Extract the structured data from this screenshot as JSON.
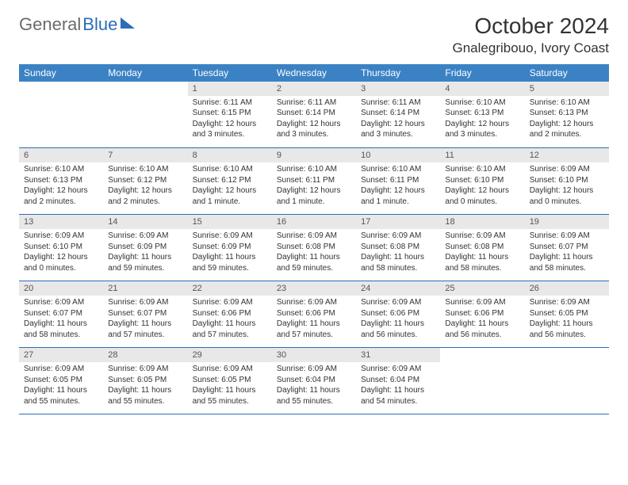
{
  "logo": {
    "general": "General",
    "blue": "Blue"
  },
  "title": "October 2024",
  "location": "Gnalegribouo, Ivory Coast",
  "colors": {
    "header_bg": "#3b82c4",
    "header_text": "#ffffff",
    "daynum_bg": "#e8e8e8",
    "daynum_text": "#555555",
    "cell_border": "#2a6db8",
    "body_text": "#333333",
    "logo_gray": "#6b6b6b",
    "logo_blue": "#2a6db8"
  },
  "weekdays": [
    "Sunday",
    "Monday",
    "Tuesday",
    "Wednesday",
    "Thursday",
    "Friday",
    "Saturday"
  ],
  "weeks": [
    [
      {
        "empty": true
      },
      {
        "empty": true
      },
      {
        "day": "1",
        "sunrise": "Sunrise: 6:11 AM",
        "sunset": "Sunset: 6:15 PM",
        "daylight": "Daylight: 12 hours and 3 minutes."
      },
      {
        "day": "2",
        "sunrise": "Sunrise: 6:11 AM",
        "sunset": "Sunset: 6:14 PM",
        "daylight": "Daylight: 12 hours and 3 minutes."
      },
      {
        "day": "3",
        "sunrise": "Sunrise: 6:11 AM",
        "sunset": "Sunset: 6:14 PM",
        "daylight": "Daylight: 12 hours and 3 minutes."
      },
      {
        "day": "4",
        "sunrise": "Sunrise: 6:10 AM",
        "sunset": "Sunset: 6:13 PM",
        "daylight": "Daylight: 12 hours and 3 minutes."
      },
      {
        "day": "5",
        "sunrise": "Sunrise: 6:10 AM",
        "sunset": "Sunset: 6:13 PM",
        "daylight": "Daylight: 12 hours and 2 minutes."
      }
    ],
    [
      {
        "day": "6",
        "sunrise": "Sunrise: 6:10 AM",
        "sunset": "Sunset: 6:13 PM",
        "daylight": "Daylight: 12 hours and 2 minutes."
      },
      {
        "day": "7",
        "sunrise": "Sunrise: 6:10 AM",
        "sunset": "Sunset: 6:12 PM",
        "daylight": "Daylight: 12 hours and 2 minutes."
      },
      {
        "day": "8",
        "sunrise": "Sunrise: 6:10 AM",
        "sunset": "Sunset: 6:12 PM",
        "daylight": "Daylight: 12 hours and 1 minute."
      },
      {
        "day": "9",
        "sunrise": "Sunrise: 6:10 AM",
        "sunset": "Sunset: 6:11 PM",
        "daylight": "Daylight: 12 hours and 1 minute."
      },
      {
        "day": "10",
        "sunrise": "Sunrise: 6:10 AM",
        "sunset": "Sunset: 6:11 PM",
        "daylight": "Daylight: 12 hours and 1 minute."
      },
      {
        "day": "11",
        "sunrise": "Sunrise: 6:10 AM",
        "sunset": "Sunset: 6:10 PM",
        "daylight": "Daylight: 12 hours and 0 minutes."
      },
      {
        "day": "12",
        "sunrise": "Sunrise: 6:09 AM",
        "sunset": "Sunset: 6:10 PM",
        "daylight": "Daylight: 12 hours and 0 minutes."
      }
    ],
    [
      {
        "day": "13",
        "sunrise": "Sunrise: 6:09 AM",
        "sunset": "Sunset: 6:10 PM",
        "daylight": "Daylight: 12 hours and 0 minutes."
      },
      {
        "day": "14",
        "sunrise": "Sunrise: 6:09 AM",
        "sunset": "Sunset: 6:09 PM",
        "daylight": "Daylight: 11 hours and 59 minutes."
      },
      {
        "day": "15",
        "sunrise": "Sunrise: 6:09 AM",
        "sunset": "Sunset: 6:09 PM",
        "daylight": "Daylight: 11 hours and 59 minutes."
      },
      {
        "day": "16",
        "sunrise": "Sunrise: 6:09 AM",
        "sunset": "Sunset: 6:08 PM",
        "daylight": "Daylight: 11 hours and 59 minutes."
      },
      {
        "day": "17",
        "sunrise": "Sunrise: 6:09 AM",
        "sunset": "Sunset: 6:08 PM",
        "daylight": "Daylight: 11 hours and 58 minutes."
      },
      {
        "day": "18",
        "sunrise": "Sunrise: 6:09 AM",
        "sunset": "Sunset: 6:08 PM",
        "daylight": "Daylight: 11 hours and 58 minutes."
      },
      {
        "day": "19",
        "sunrise": "Sunrise: 6:09 AM",
        "sunset": "Sunset: 6:07 PM",
        "daylight": "Daylight: 11 hours and 58 minutes."
      }
    ],
    [
      {
        "day": "20",
        "sunrise": "Sunrise: 6:09 AM",
        "sunset": "Sunset: 6:07 PM",
        "daylight": "Daylight: 11 hours and 58 minutes."
      },
      {
        "day": "21",
        "sunrise": "Sunrise: 6:09 AM",
        "sunset": "Sunset: 6:07 PM",
        "daylight": "Daylight: 11 hours and 57 minutes."
      },
      {
        "day": "22",
        "sunrise": "Sunrise: 6:09 AM",
        "sunset": "Sunset: 6:06 PM",
        "daylight": "Daylight: 11 hours and 57 minutes."
      },
      {
        "day": "23",
        "sunrise": "Sunrise: 6:09 AM",
        "sunset": "Sunset: 6:06 PM",
        "daylight": "Daylight: 11 hours and 57 minutes."
      },
      {
        "day": "24",
        "sunrise": "Sunrise: 6:09 AM",
        "sunset": "Sunset: 6:06 PM",
        "daylight": "Daylight: 11 hours and 56 minutes."
      },
      {
        "day": "25",
        "sunrise": "Sunrise: 6:09 AM",
        "sunset": "Sunset: 6:06 PM",
        "daylight": "Daylight: 11 hours and 56 minutes."
      },
      {
        "day": "26",
        "sunrise": "Sunrise: 6:09 AM",
        "sunset": "Sunset: 6:05 PM",
        "daylight": "Daylight: 11 hours and 56 minutes."
      }
    ],
    [
      {
        "day": "27",
        "sunrise": "Sunrise: 6:09 AM",
        "sunset": "Sunset: 6:05 PM",
        "daylight": "Daylight: 11 hours and 55 minutes."
      },
      {
        "day": "28",
        "sunrise": "Sunrise: 6:09 AM",
        "sunset": "Sunset: 6:05 PM",
        "daylight": "Daylight: 11 hours and 55 minutes."
      },
      {
        "day": "29",
        "sunrise": "Sunrise: 6:09 AM",
        "sunset": "Sunset: 6:05 PM",
        "daylight": "Daylight: 11 hours and 55 minutes."
      },
      {
        "day": "30",
        "sunrise": "Sunrise: 6:09 AM",
        "sunset": "Sunset: 6:04 PM",
        "daylight": "Daylight: 11 hours and 55 minutes."
      },
      {
        "day": "31",
        "sunrise": "Sunrise: 6:09 AM",
        "sunset": "Sunset: 6:04 PM",
        "daylight": "Daylight: 11 hours and 54 minutes."
      },
      {
        "empty": true
      },
      {
        "empty": true
      }
    ]
  ]
}
